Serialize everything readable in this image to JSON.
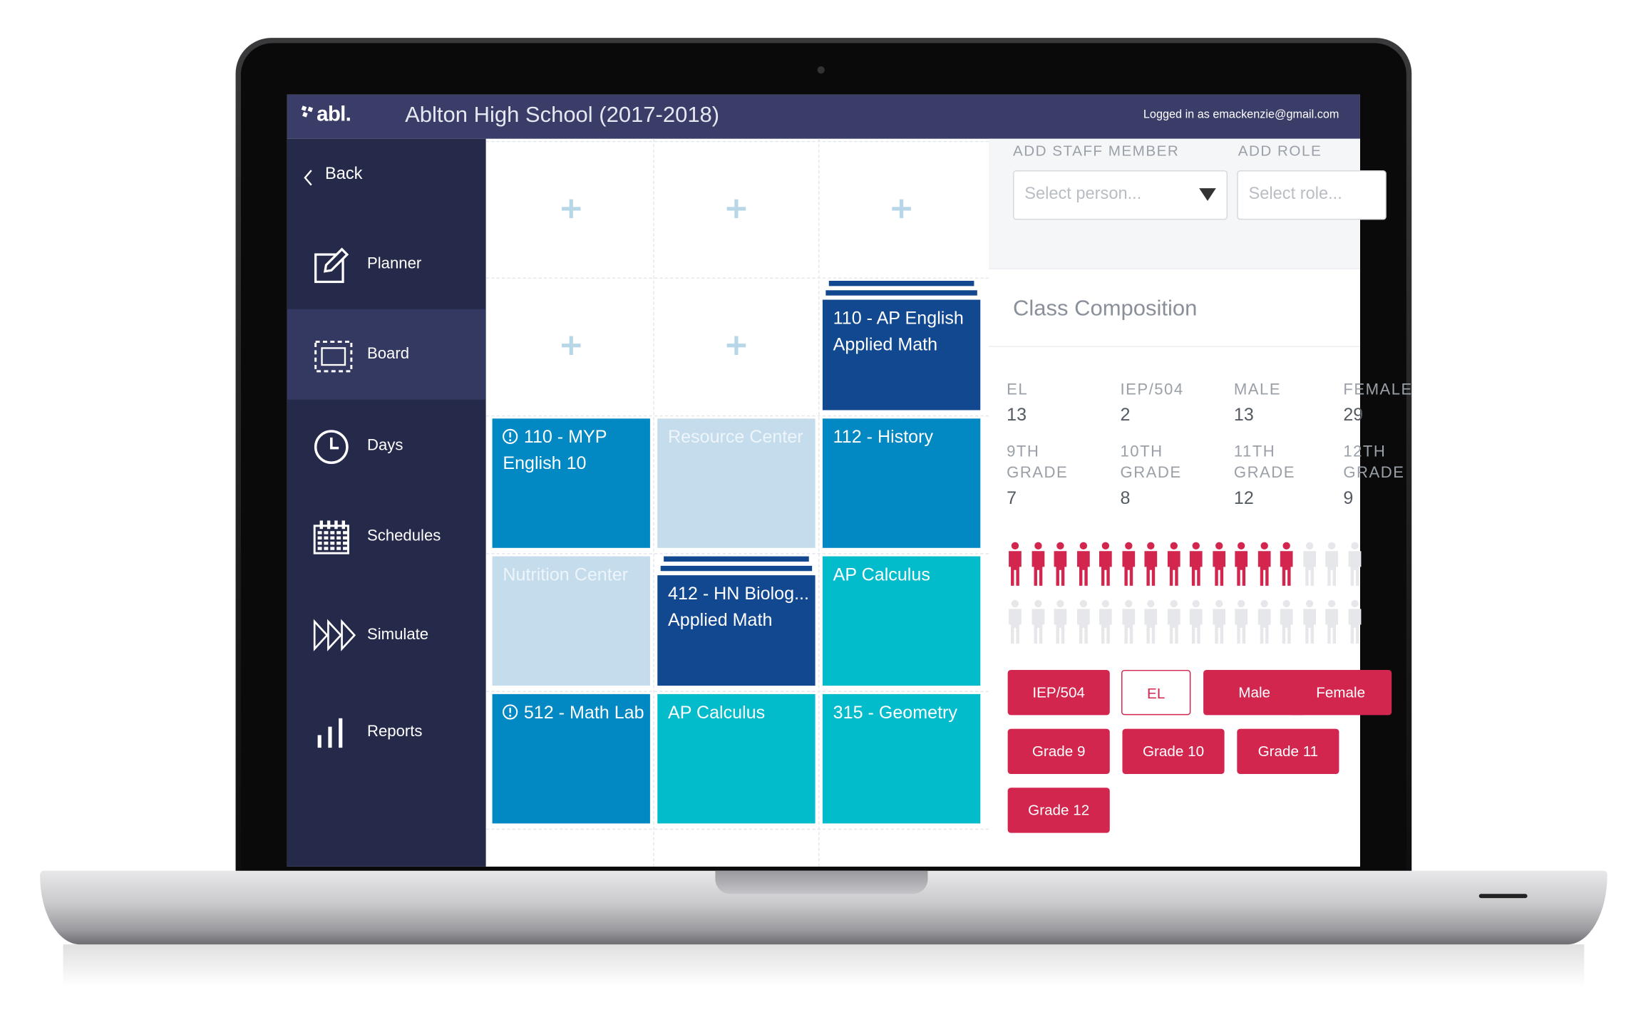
{
  "header": {
    "logo": "abl.",
    "title": "Ablton High School (2017-2018)",
    "login": "Logged in as emackenzie@gmail.com"
  },
  "nav": {
    "back": "Back",
    "items": [
      "Planner",
      "Board",
      "Days",
      "Schedules",
      "Simulate",
      "Reports"
    ],
    "active": "Board"
  },
  "board": {
    "rows": [
      [
        {
          "type": "add"
        },
        {
          "type": "add"
        },
        {
          "type": "add"
        }
      ],
      [
        {
          "type": "add"
        },
        {
          "type": "add"
        },
        {
          "type": "class",
          "lines": [
            "110 - AP English",
            "Applied Math"
          ],
          "color": "#12488f",
          "stacked": true
        }
      ],
      [
        {
          "type": "class",
          "lines": [
            "110 - MYP",
            "English 10"
          ],
          "color": "#0288c2",
          "alert": true
        },
        {
          "type": "class",
          "lines": [
            "Resource Center"
          ],
          "color": "#c4dceb"
        },
        {
          "type": "class",
          "lines": [
            "112 - History"
          ],
          "color": "#0288c2"
        }
      ],
      [
        {
          "type": "class",
          "lines": [
            "Nutrition Center"
          ],
          "color": "#c4dceb"
        },
        {
          "type": "class",
          "lines": [
            "412 - HN Biolog...",
            "Applied Math"
          ],
          "color": "#12488f",
          "stacked": true
        },
        {
          "type": "class",
          "lines": [
            "AP Calculus"
          ],
          "color": "#03bccb"
        }
      ],
      [
        {
          "type": "class",
          "lines": [
            "512 - Math Lab"
          ],
          "color": "#0288c2",
          "alert": true
        },
        {
          "type": "class",
          "lines": [
            "AP Calculus"
          ],
          "color": "#03bccb"
        },
        {
          "type": "class",
          "lines": [
            "315 - Geometry"
          ],
          "color": "#03bccb"
        }
      ]
    ]
  },
  "staff": {
    "member_label": "ADD STAFF MEMBER",
    "member_placeholder": "Select person...",
    "role_label": "ADD ROLE",
    "role_placeholder": "Select role..."
  },
  "composition": {
    "title": "Class Composition",
    "stats": [
      [
        {
          "label": "EL",
          "value": 13
        },
        {
          "label": "IEP/504",
          "value": 2
        },
        {
          "label": "MALE",
          "value": 13
        },
        {
          "label": "FEMALE",
          "value": 29
        }
      ],
      [
        {
          "label": "9TH GRADE",
          "value": 7
        },
        {
          "label": "10TH GRADE",
          "value": 8
        },
        {
          "label": "11TH GRADE",
          "value": 12
        },
        {
          "label": "12TH GRADE",
          "value": 9
        }
      ]
    ],
    "filters": [
      [
        {
          "label": "IEP/504"
        },
        {
          "label": "EL",
          "outlined": true
        },
        {
          "label": "Male"
        },
        {
          "label": "Female"
        }
      ],
      [
        {
          "label": "Grade 9"
        },
        {
          "label": "Grade 10"
        },
        {
          "label": "Grade 11"
        }
      ],
      [
        {
          "label": "Grade 12"
        }
      ]
    ]
  }
}
